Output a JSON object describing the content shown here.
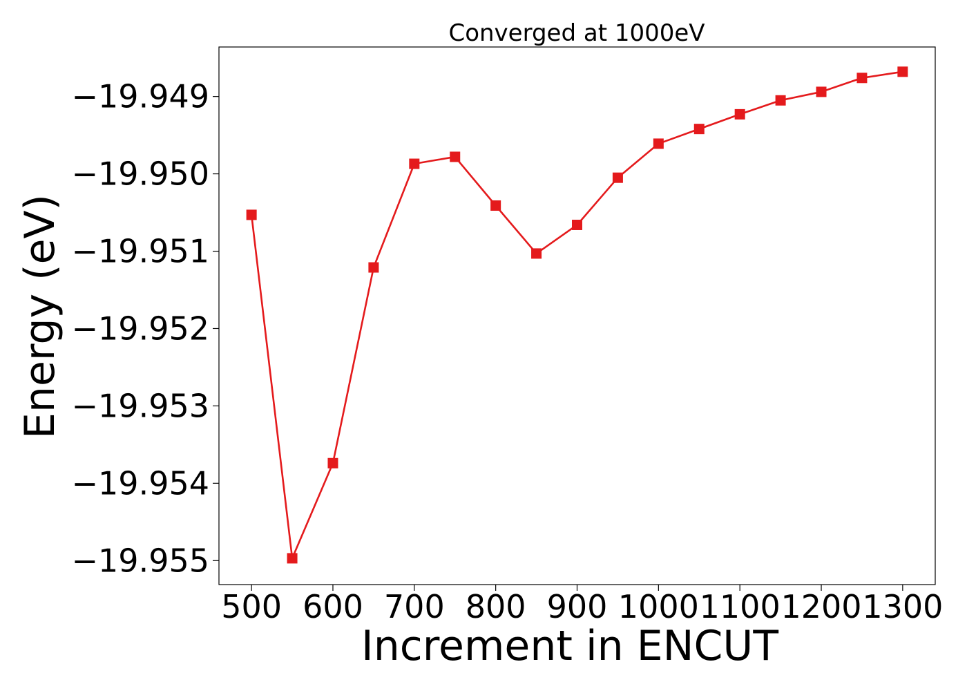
{
  "chart_data": {
    "type": "line",
    "title": "Converged at 1000eV",
    "xlabel": "Increment in ENCUT",
    "ylabel": "Energy (eV)",
    "xlim": [
      460,
      1340
    ],
    "ylim": [
      -19.95531,
      -19.94836
    ],
    "xticks": [
      500,
      600,
      700,
      800,
      900,
      1000,
      1100,
      1200,
      1300
    ],
    "xtick_labels": [
      "500",
      "600",
      "700",
      "800",
      "900",
      "1000",
      "1100",
      "1200",
      "1300"
    ],
    "yticks": [
      -19.949,
      -19.95,
      -19.951,
      -19.952,
      -19.953,
      -19.954,
      -19.955
    ],
    "ytick_labels": [
      "−19.949",
      "−19.950",
      "−19.951",
      "−19.952",
      "−19.953",
      "−19.954",
      "−19.955"
    ],
    "grid": false,
    "series": [
      {
        "color": "#e41a1c",
        "marker": "square",
        "x": [
          500,
          550,
          600,
          650,
          700,
          750,
          800,
          850,
          900,
          950,
          1000,
          1050,
          1100,
          1150,
          1200,
          1250,
          1300
        ],
        "y": [
          -19.95053,
          -19.95497,
          -19.95374,
          -19.95121,
          -19.94987,
          -19.94978,
          -19.95041,
          -19.95103,
          -19.95066,
          -19.95005,
          -19.94961,
          -19.94942,
          -19.94923,
          -19.94905,
          -19.94894,
          -19.94876,
          -19.94868
        ]
      }
    ]
  }
}
